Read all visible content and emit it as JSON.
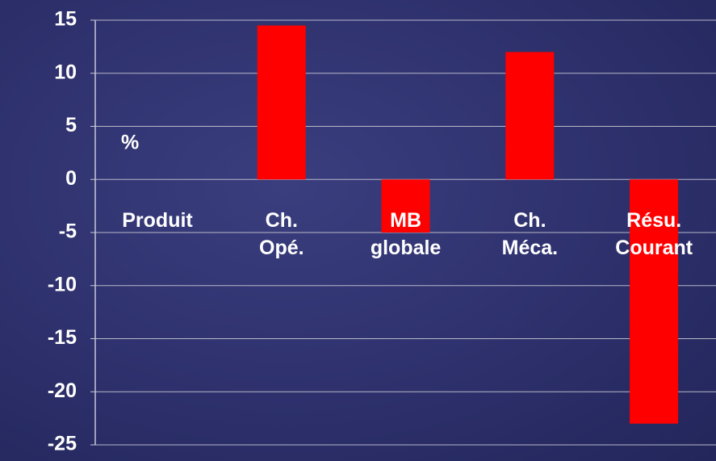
{
  "chart_data": {
    "type": "bar",
    "annotation": "%",
    "categories": [
      "Produit",
      "Ch.\nOpé.",
      "MB\nglobale",
      "Ch.\nMéca.",
      "Résu.\nCourant"
    ],
    "values": [
      0,
      14.5,
      -5,
      12,
      -23
    ],
    "color": "#ff0000",
    "ylim": [
      -25,
      15
    ],
    "yticks": [
      -25,
      -20,
      -15,
      -10,
      -5,
      0,
      5,
      10,
      15
    ],
    "grid": true
  }
}
